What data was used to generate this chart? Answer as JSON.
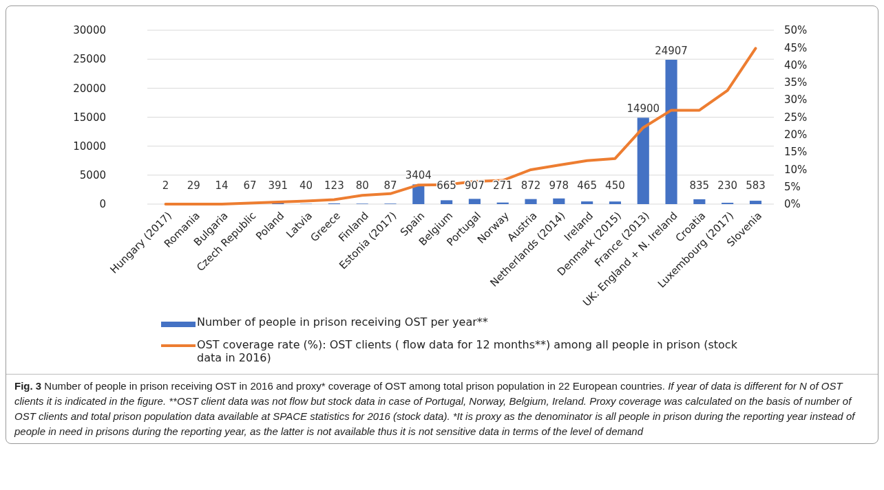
{
  "chart_data": {
    "type": "bar",
    "categories": [
      "Hungary (2017)",
      "Romania",
      "Bulgaria",
      "Czech Republic",
      "Poland",
      "Latvia",
      "Greece",
      "Finland",
      "Estonia (2017)",
      "Spain",
      "Belgium",
      "Portugal",
      "Norway",
      "Austria",
      "Netherlands (2014)",
      "Ireland",
      "Denmark (2015)",
      "France (2013)",
      "UK: England + N. Ireland",
      "Croatia",
      "Luxembourg (2017)",
      "Slovenia"
    ],
    "series": [
      {
        "name": "Number of people in prison receiving OST per year**",
        "color": "#4472c4",
        "values": [
          2,
          29,
          14,
          67,
          391,
          40,
          123,
          80,
          87,
          3404,
          665,
          907,
          271,
          872,
          978,
          465,
          450,
          14900,
          24907,
          835,
          230,
          583
        ],
        "value_labels": [
          "2",
          "29",
          "14",
          "67",
          "391",
          "40",
          "123",
          "80",
          "87",
          "3404",
          "665",
          "907",
          "271",
          "872",
          "978",
          "465",
          "450",
          "14900",
          "24907",
          "835",
          "230",
          "583"
        ]
      },
      {
        "name": "OST coverage rate (%): OST clients ( flow data for 12 months**) among all people in prison (stock data in 2016)",
        "type": "line",
        "axis": "y2",
        "color": "#ed7d31",
        "values": [
          0,
          0,
          0,
          0.3,
          0.6,
          0.9,
          1.3,
          2.5,
          3.0,
          5.5,
          5.6,
          6.5,
          6.8,
          9.9,
          11.2,
          12.5,
          13.1,
          22,
          27,
          27,
          32.7,
          44.8
        ]
      }
    ],
    "ylim": [
      0,
      30000
    ],
    "yticks": [
      0,
      5000,
      10000,
      15000,
      20000,
      25000,
      30000
    ],
    "y2lim": [
      0,
      50
    ],
    "y2ticks": [
      {
        "value": 0,
        "label": "0%"
      },
      {
        "value": 5,
        "label": "5%"
      },
      {
        "value": 10,
        "label": "10%"
      },
      {
        "value": 15,
        "label": "15%"
      },
      {
        "value": 20,
        "label": "20%"
      },
      {
        "value": 25,
        "label": "25%"
      },
      {
        "value": 30,
        "label": "30%"
      },
      {
        "value": 35,
        "label": "35%"
      },
      {
        "value": 40,
        "label": "40%"
      },
      {
        "value": 45,
        "label": "45%"
      },
      {
        "value": 50,
        "label": "50%"
      }
    ],
    "grid": "y",
    "legend": "bottom",
    "annotations": [
      "Fig. 3",
      "Number of people in prison receiving OST in 2016 and proxy* coverage of OST among total prison population in 22 European countries.",
      "If year of data is different for N of OST clients it is indicated in the figure. **OST client data was not flow but stock data in case of Portugal, Norway, Belgium, Ireland. Proxy coverage was calculated on the basis of number of OST clients and total prison population data available at SPACE statistics for 2016 (stock data). *It is proxy as the denominator is all people in prison during the reporting year instead of people in need in prisons during the reporting year, as the latter is not available thus it is not sensitive data in terms of the level of demand"
    ]
  }
}
